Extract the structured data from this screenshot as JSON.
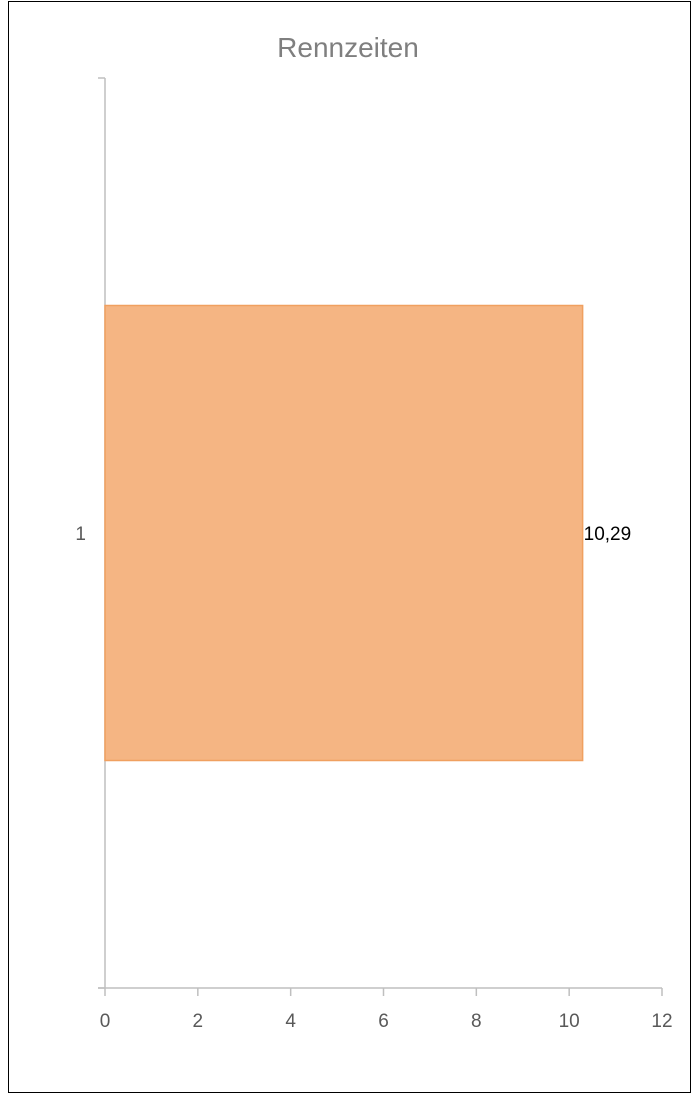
{
  "chart_data": {
    "type": "bar",
    "orientation": "horizontal",
    "title": "Rennzeiten",
    "xlabel": "",
    "ylabel": "",
    "categories": [
      "1"
    ],
    "series": [
      {
        "values": [
          10.29
        ],
        "data_labels": [
          "10,29"
        ],
        "color": "#f5b583",
        "edge_color": "#f0a060"
      }
    ],
    "xlim": [
      0,
      12
    ],
    "x_ticks": [
      0,
      2,
      4,
      6,
      8,
      10,
      12
    ],
    "x_tick_labels": [
      "0",
      "2",
      "4",
      "6",
      "8",
      "10",
      "12"
    ],
    "grid": false,
    "legend": "none"
  }
}
